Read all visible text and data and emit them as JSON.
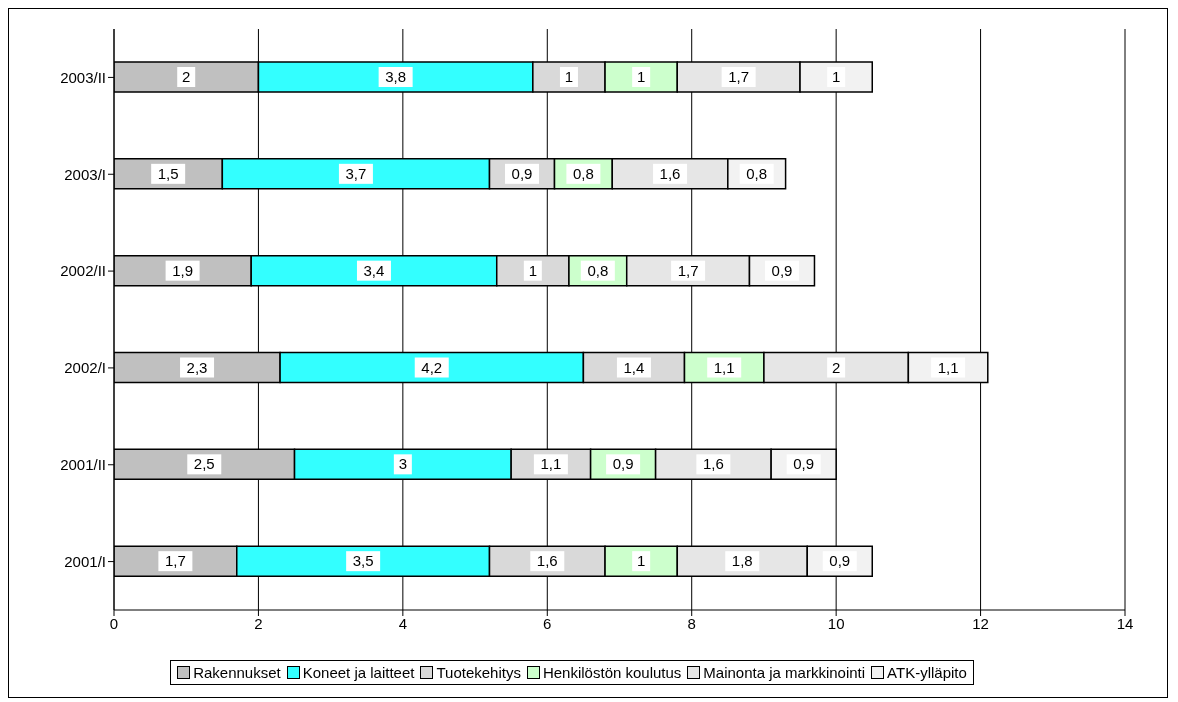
{
  "chart_data": {
    "type": "bar",
    "orientation": "horizontal",
    "stacked": true,
    "categories": [
      "2003/II",
      "2003/I",
      "2002/II",
      "2002/I",
      "2001/II",
      "2001/I"
    ],
    "series": [
      {
        "name": "Rakennukset",
        "color": "#c0c0c0",
        "values": [
          2,
          1.5,
          1.9,
          2.3,
          2.5,
          1.7
        ],
        "value_labels": [
          "2",
          "1,5",
          "1,9",
          "2,3",
          "2,5",
          "1,7"
        ]
      },
      {
        "name": "Koneet ja laitteet",
        "color": "#33ffff",
        "values": [
          3.8,
          3.7,
          3.4,
          4.2,
          3,
          3.5
        ],
        "value_labels": [
          "3,8",
          "3,7",
          "3,4",
          "4,2",
          "3",
          "3,5"
        ]
      },
      {
        "name": "Tuotekehitys",
        "color": "#d9d9d9",
        "values": [
          1,
          0.9,
          1,
          1.4,
          1.1,
          1.6
        ],
        "value_labels": [
          "1",
          "0,9",
          "1",
          "1,4",
          "1,1",
          "1,6"
        ]
      },
      {
        "name": "Henkilöstön koulutus",
        "color": "#ccffcc",
        "values": [
          1,
          0.8,
          0.8,
          1.1,
          0.9,
          1
        ],
        "value_labels": [
          "1",
          "0,8",
          "0,8",
          "1,1",
          "0,9",
          "1"
        ]
      },
      {
        "name": "Mainonta ja markkinointi",
        "color": "#e6e6e6",
        "values": [
          1.7,
          1.6,
          1.7,
          2,
          1.6,
          1.8
        ],
        "value_labels": [
          "1,7",
          "1,6",
          "1,7",
          "2",
          "1,6",
          "1,8"
        ]
      },
      {
        "name": "ATK-ylläpito",
        "color": "#f2f2f2",
        "values": [
          1,
          0.8,
          0.9,
          1.1,
          0.9,
          0.9
        ],
        "value_labels": [
          "1",
          "0,8",
          "0,9",
          "1,1",
          "0,9",
          "0,9"
        ]
      }
    ],
    "xlim": [
      0,
      14
    ],
    "xticks": [
      0,
      2,
      4,
      6,
      8,
      10,
      12,
      14
    ],
    "grid": "x",
    "legend": "bottom"
  }
}
